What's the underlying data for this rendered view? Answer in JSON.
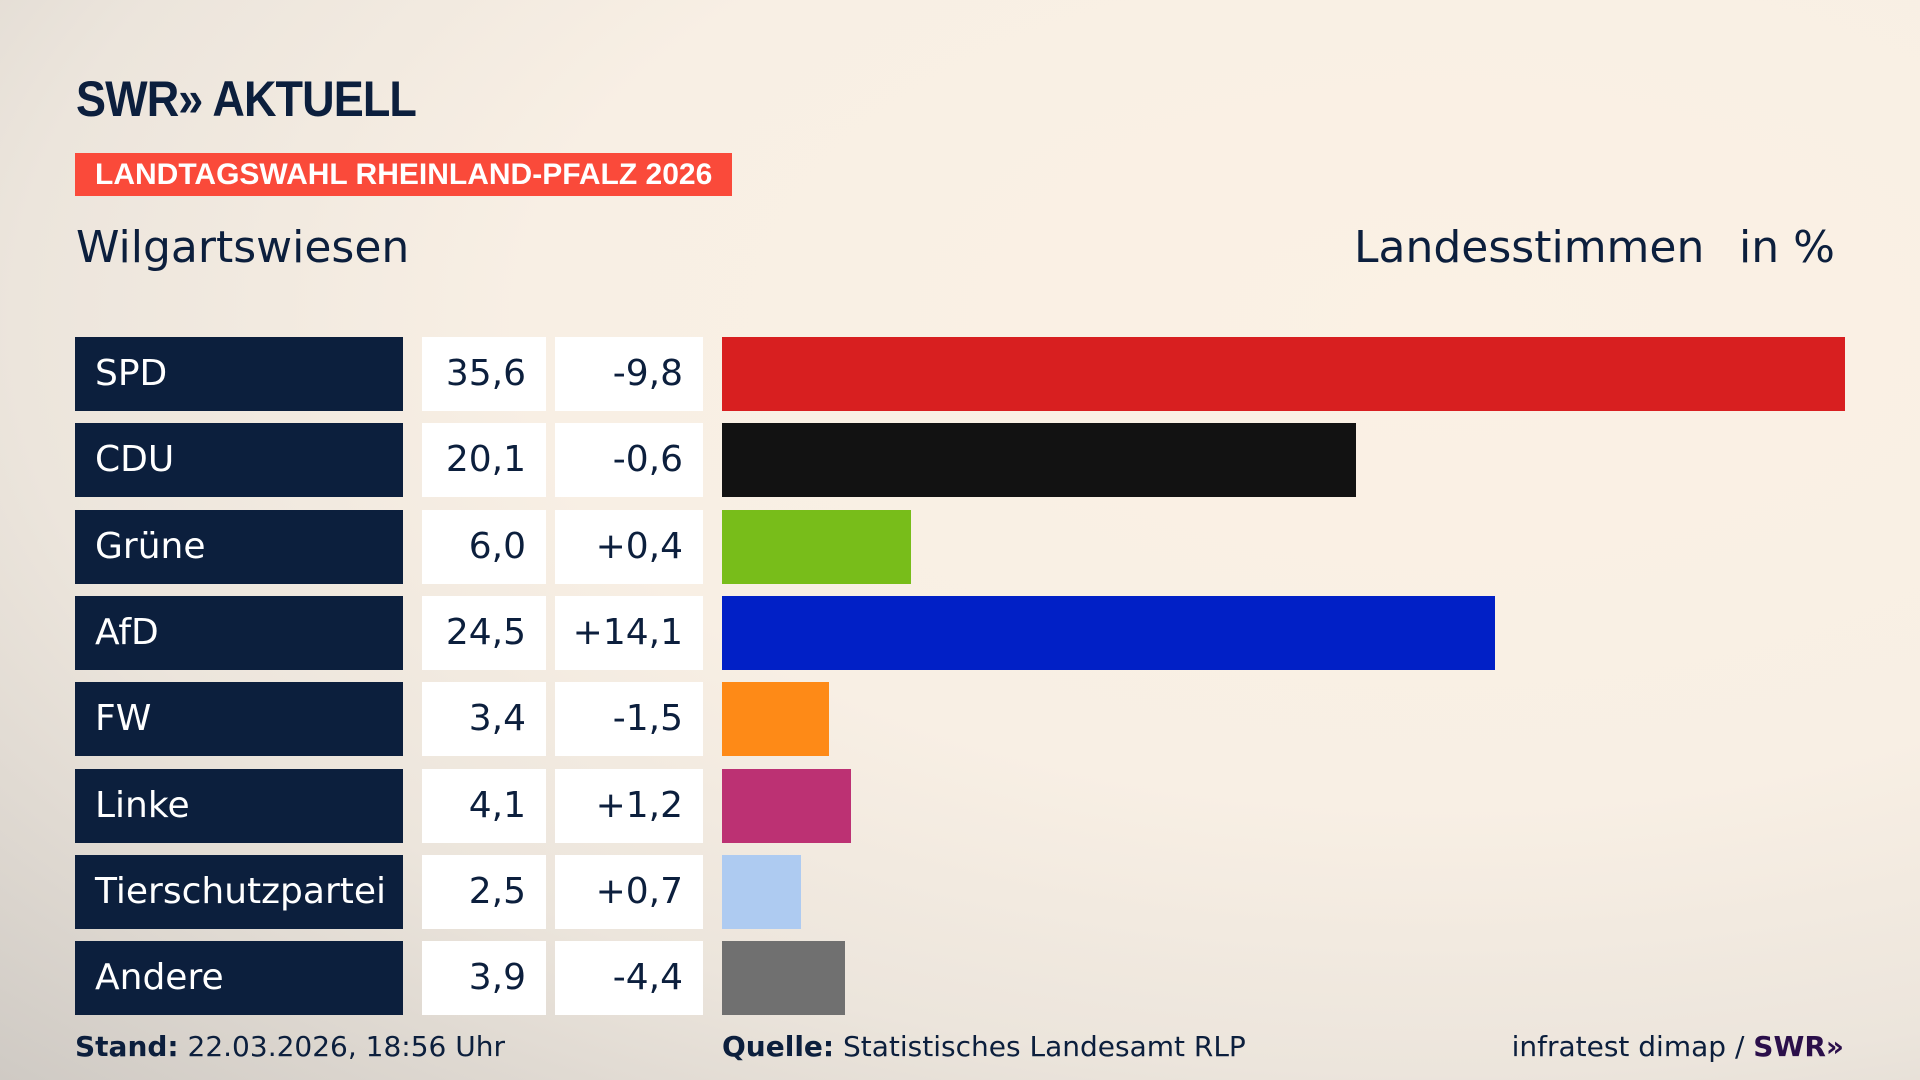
{
  "header": {
    "logo": "SWR» AKTUELL",
    "banner": "LANDTAGSWAHL RHEINLAND-PFALZ 2026",
    "place": "Wilgartswiesen",
    "metric": "Landesstimmen",
    "unit": "in %"
  },
  "chart_data": {
    "type": "bar",
    "orientation": "horizontal",
    "xlim": [
      0,
      35.6
    ],
    "categories": [
      "SPD",
      "CDU",
      "Grüne",
      "AfD",
      "FW",
      "Linke",
      "Tierschutzpartei",
      "Andere"
    ],
    "values": [
      35.6,
      20.1,
      6.0,
      24.5,
      3.4,
      4.1,
      2.5,
      3.9
    ],
    "value_labels": [
      "35,6",
      "20,1",
      "6,0",
      "24,5",
      "3,4",
      "4,1",
      "2,5",
      "3,9"
    ],
    "diff_labels": [
      "-9,8",
      "-0,6",
      "+0,4",
      "+14,1",
      "-1,5",
      "+1,2",
      "+0,7",
      "-4,4"
    ],
    "colors": [
      "#d81f20",
      "#121212",
      "#78bd1a",
      "#0120c6",
      "#fe8a17",
      "#bc3173",
      "#aecbf1",
      "#707070"
    ]
  },
  "footer": {
    "stand_label": "Stand:",
    "stand_value": "22.03.2026, 18:56 Uhr",
    "source_label": "Quelle:",
    "source_value": "Statistisches Landesamt RLP",
    "credit": "infratest dimap /",
    "credit_logo": "SWR»"
  }
}
